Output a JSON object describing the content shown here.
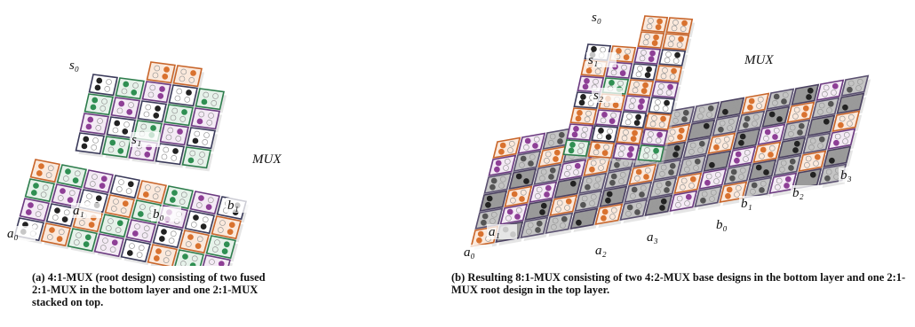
{
  "figures": [
    {
      "labels": [
        "s₀",
        "s₁",
        "MUX",
        "a₀",
        "a₁",
        "b₀",
        "b₁"
      ],
      "caption": {
        "label": "(a)",
        "text": "4:1-MUX (root design) consisting of two fused 2:1-MUX in the bottom layer and one 2:1-MUX stacked on top."
      }
    },
    {
      "labels": [
        "s₀",
        "s₁",
        "MUX",
        "s₂",
        "b₃",
        "b₂",
        "b₁",
        "b₀",
        "a₃",
        "a₂",
        "a₁",
        "a₀"
      ],
      "caption": {
        "label": "(b)",
        "text": "Resulting 8:1-MUX consisting of two 4:2-MUX base designs in the bottom layer and one 2:1-MUX root design in the top layer."
      }
    }
  ]
}
